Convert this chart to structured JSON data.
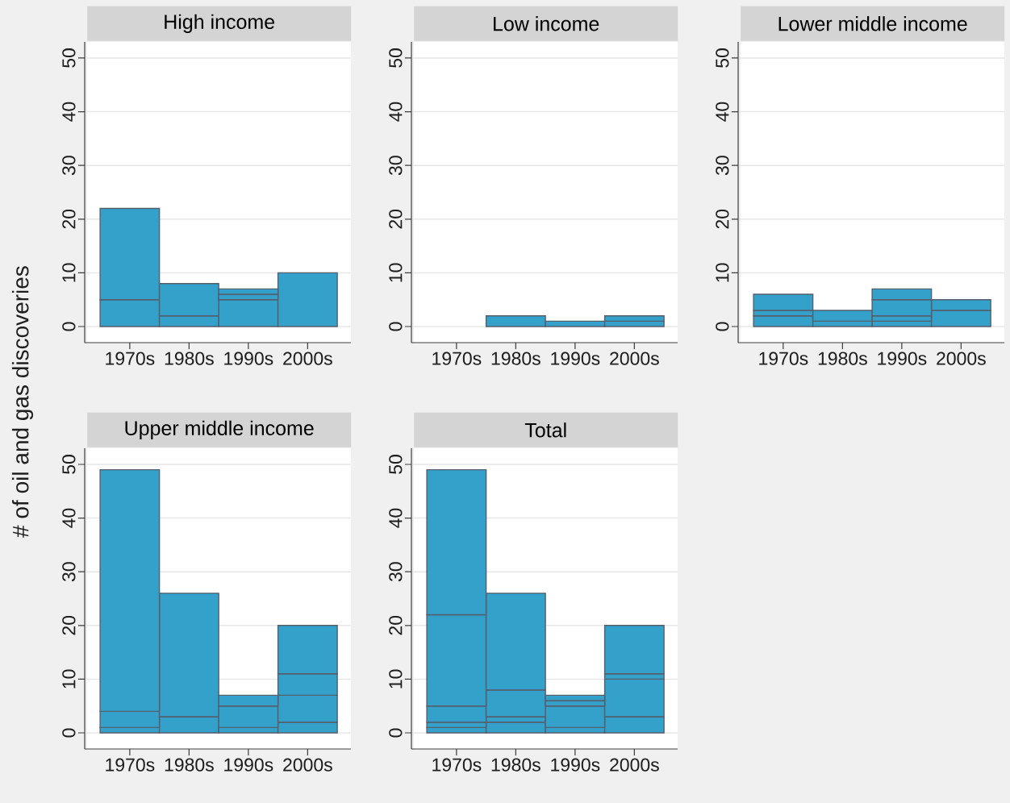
{
  "chart_data": [
    {
      "type": "bar",
      "title": "High income",
      "ylabel": "# of oil and gas discoveries",
      "categories": [
        "1970s",
        "1980s",
        "1990s",
        "2000s"
      ],
      "stacked": true,
      "ylim": [
        -3,
        53
      ],
      "yticks": [
        0,
        10,
        20,
        30,
        40,
        50
      ],
      "grid": "y",
      "series": [
        {
          "color": "#33a1c9",
          "values": [
            5,
            2,
            5,
            10
          ]
        },
        {
          "color": "#33a1c9",
          "values": [
            17,
            6,
            1,
            null
          ]
        },
        {
          "color": "#33a1c9",
          "values": [
            null,
            null,
            1,
            null
          ]
        }
      ]
    },
    {
      "type": "bar",
      "title": "Low income",
      "categories": [
        "1970s",
        "1980s",
        "1990s",
        "2000s"
      ],
      "stacked": true,
      "ylim": [
        -3,
        53
      ],
      "yticks": [
        0,
        10,
        20,
        30,
        40,
        50
      ],
      "grid": "y",
      "series": [
        {
          "color": "#33a1c9",
          "values": [
            null,
            2,
            1,
            1
          ]
        },
        {
          "color": "#33a1c9",
          "values": [
            null,
            null,
            null,
            1
          ]
        }
      ]
    },
    {
      "type": "bar",
      "title": "Lower middle income",
      "categories": [
        "1970s",
        "1980s",
        "1990s",
        "2000s"
      ],
      "stacked": true,
      "ylim": [
        -3,
        53
      ],
      "yticks": [
        0,
        10,
        20,
        30,
        40,
        50
      ],
      "grid": "y",
      "series": [
        {
          "color": "#33a1c9",
          "values": [
            2,
            1,
            1,
            3
          ]
        },
        {
          "color": "#33a1c9",
          "values": [
            1,
            2,
            1,
            2
          ]
        },
        {
          "color": "#33a1c9",
          "values": [
            3,
            null,
            3,
            null
          ]
        },
        {
          "color": "#33a1c9",
          "values": [
            null,
            null,
            2,
            null
          ]
        }
      ]
    },
    {
      "type": "bar",
      "title": "Upper middle income",
      "categories": [
        "1970s",
        "1980s",
        "1990s",
        "2000s"
      ],
      "stacked": true,
      "ylim": [
        -3,
        53
      ],
      "yticks": [
        0,
        10,
        20,
        30,
        40,
        50
      ],
      "grid": "y",
      "series": [
        {
          "color": "#33a1c9",
          "values": [
            1,
            3,
            1,
            2
          ]
        },
        {
          "color": "#33a1c9",
          "values": [
            3,
            23,
            4,
            5
          ]
        },
        {
          "color": "#33a1c9",
          "values": [
            45,
            null,
            2,
            4
          ]
        },
        {
          "color": "#33a1c9",
          "values": [
            null,
            null,
            null,
            9
          ]
        }
      ]
    },
    {
      "type": "bar",
      "title": "Total",
      "categories": [
        "1970s",
        "1980s",
        "1990s",
        "2000s"
      ],
      "stacked": true,
      "ylim": [
        -3,
        53
      ],
      "yticks": [
        0,
        10,
        20,
        30,
        40,
        50
      ],
      "grid": "y",
      "series": [
        {
          "color": "#33a1c9",
          "values": [
            1,
            2,
            1,
            3
          ]
        },
        {
          "color": "#33a1c9",
          "values": [
            1,
            1,
            4,
            7
          ]
        },
        {
          "color": "#33a1c9",
          "values": [
            3,
            5,
            1,
            1
          ]
        },
        {
          "color": "#33a1c9",
          "values": [
            17,
            18,
            1,
            9
          ]
        },
        {
          "color": "#33a1c9",
          "values": [
            27,
            null,
            null,
            null
          ]
        }
      ]
    }
  ]
}
